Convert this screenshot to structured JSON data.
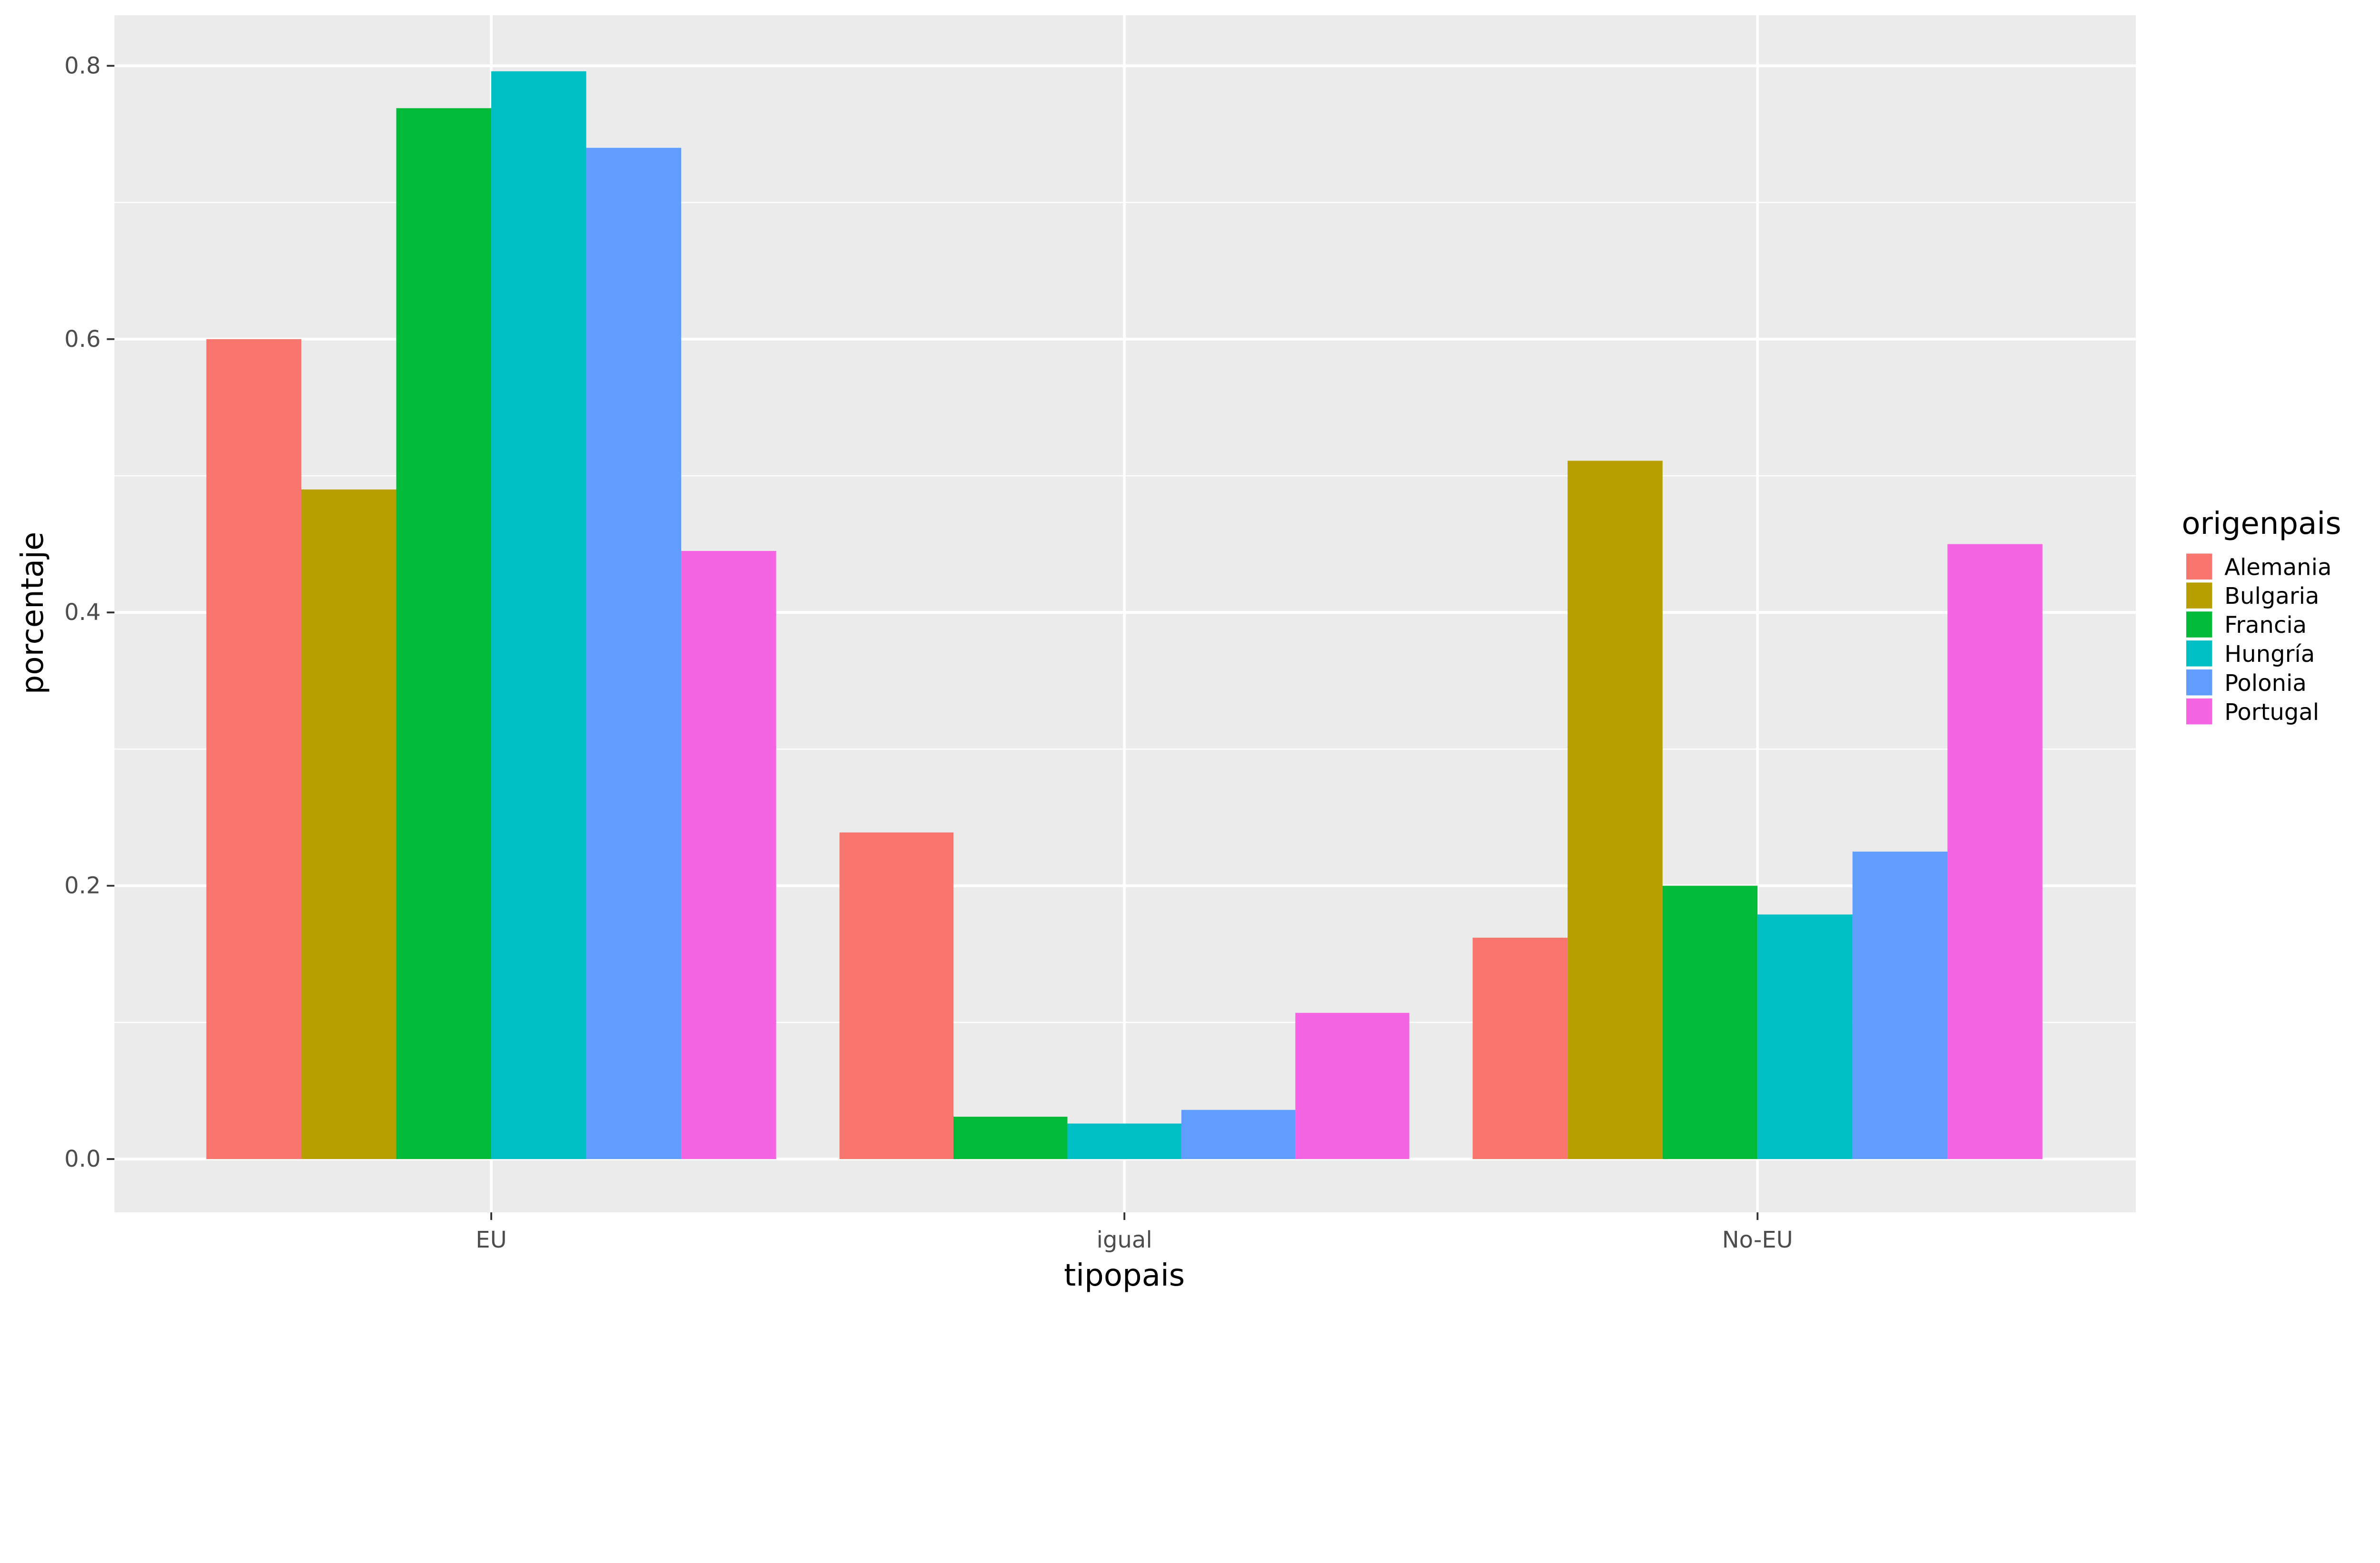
{
  "chart_data": {
    "type": "bar",
    "xlabel": "tipopais",
    "ylabel": "porcentaje",
    "categories": [
      "EU",
      "igual",
      "No-EU"
    ],
    "ylim": [
      -0.039,
      0.837
    ],
    "yticks": [
      "0.0",
      "0.2",
      "0.4",
      "0.6",
      "0.8"
    ],
    "ytick_values": [
      0,
      0.2,
      0.4,
      0.6,
      0.8
    ],
    "grid": true,
    "legend": {
      "title": "origenpais",
      "placement": "right"
    },
    "series": [
      {
        "name": "Alemania",
        "color": "#F8766D",
        "values": [
          0.6,
          0.239,
          0.162
        ]
      },
      {
        "name": "Bulgaria",
        "color": "#B79F00",
        "values": [
          0.49,
          null,
          0.511
        ]
      },
      {
        "name": "Francia",
        "color": "#00BA38",
        "values": [
          0.769,
          0.031,
          0.2
        ]
      },
      {
        "name": "Hungría",
        "color": "#00BFC4",
        "values": [
          0.796,
          0.026,
          0.179
        ]
      },
      {
        "name": "Polonia",
        "color": "#619CFF",
        "values": [
          0.74,
          0.036,
          0.225
        ]
      },
      {
        "name": "Portugal",
        "color": "#F564E3",
        "values": [
          0.445,
          0.107,
          0.45
        ]
      }
    ]
  }
}
